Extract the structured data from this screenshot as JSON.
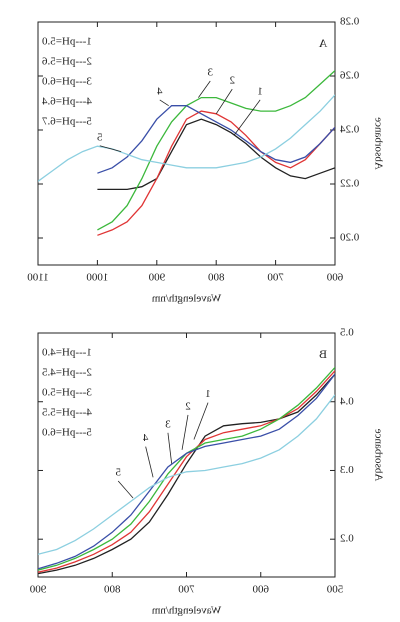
{
  "chart_data": [
    {
      "type": "line",
      "panel_label": "A",
      "x_label": "Wavelength/nm",
      "y_label": "Absorbance",
      "x": [
        600,
        625,
        650,
        675,
        700,
        725,
        750,
        775,
        800,
        825,
        850,
        875,
        900,
        925,
        950,
        975,
        1000,
        1025,
        1050,
        1075,
        1100
      ],
      "xlim": [
        600,
        1100
      ],
      "xticks": [
        600,
        700,
        800,
        900,
        1000,
        1100
      ],
      "ylim": [
        0.19,
        0.28
      ],
      "yticks": [
        {
          "value": 0.2,
          "label": "0.20"
        },
        0.22,
        0.24,
        0.26,
        0.28
      ],
      "legend": "upper right",
      "curve_labels": [
        "1",
        "2",
        "3",
        "4",
        "5"
      ],
      "series": [
        {
          "name": "1---pH=5.0",
          "color": "#222222",
          "values": [
            0.226,
            0.224,
            0.222,
            0.223,
            0.226,
            0.23,
            0.235,
            0.239,
            0.242,
            0.244,
            0.242,
            0.232,
            0.222,
            0.219,
            0.218,
            0.218,
            0.218,
            null,
            null,
            null,
            null
          ]
        },
        {
          "name": "2---pH=5.6",
          "color": "#e03535",
          "values": [
            0.241,
            0.235,
            0.229,
            0.226,
            0.228,
            0.232,
            0.238,
            0.243,
            0.246,
            0.247,
            0.244,
            0.234,
            0.222,
            0.212,
            0.206,
            0.203,
            0.201,
            null,
            null,
            null,
            null
          ]
        },
        {
          "name": "3---pH=6.0",
          "color": "#3cb83c",
          "values": [
            0.262,
            0.257,
            0.252,
            0.249,
            0.247,
            0.247,
            0.248,
            0.25,
            0.252,
            0.252,
            0.249,
            0.243,
            0.234,
            0.222,
            0.212,
            0.206,
            0.203,
            null,
            null,
            null,
            null
          ]
        },
        {
          "name": "4---pH=6.4",
          "color": "#3a4fa8",
          "values": [
            0.241,
            0.235,
            0.23,
            0.228,
            0.229,
            0.232,
            0.236,
            0.24,
            0.243,
            0.246,
            0.249,
            0.249,
            0.244,
            0.236,
            0.23,
            0.226,
            0.224,
            null,
            null,
            null,
            null
          ]
        },
        {
          "name": "5---pH=6.7",
          "color": "#8ccfe0",
          "values": [
            0.253,
            0.247,
            0.242,
            0.237,
            0.233,
            0.23,
            0.228,
            0.227,
            0.226,
            0.226,
            0.226,
            0.227,
            0.228,
            0.229,
            0.231,
            0.233,
            0.234,
            0.232,
            0.229,
            0.225,
            0.221
          ]
        }
      ]
    },
    {
      "type": "line",
      "panel_label": "B",
      "x_label": "Wavelength/nm",
      "y_label": "Absorbance",
      "x": [
        500,
        525,
        550,
        575,
        600,
        625,
        650,
        675,
        700,
        725,
        750,
        775,
        800,
        825,
        850,
        875,
        900
      ],
      "xlim": [
        500,
        900
      ],
      "xticks": [
        500,
        600,
        700,
        800,
        900
      ],
      "ylim": [
        0.145,
        0.5
      ],
      "yticks": [
        0.2,
        0.3,
        0.4,
        0.5
      ],
      "legend": "upper right",
      "curve_labels": [
        "1",
        "2",
        "3",
        "4",
        "5"
      ],
      "series": [
        {
          "name": "1---pH=4.0",
          "color": "#222222",
          "values": [
            0.44,
            0.41,
            0.385,
            0.375,
            0.37,
            0.368,
            0.365,
            0.35,
            0.31,
            0.265,
            0.225,
            0.2,
            0.185,
            0.172,
            0.162,
            0.155,
            0.15
          ]
        },
        {
          "name": "2---pH=4.5",
          "color": "#e03535",
          "values": [
            0.445,
            0.415,
            0.39,
            0.375,
            0.365,
            0.36,
            0.355,
            0.345,
            0.32,
            0.28,
            0.24,
            0.21,
            0.192,
            0.178,
            0.167,
            0.158,
            0.152
          ]
        },
        {
          "name": "3---pH=5.0",
          "color": "#3cb83c",
          "values": [
            0.45,
            0.42,
            0.395,
            0.375,
            0.36,
            0.35,
            0.345,
            0.34,
            0.325,
            0.295,
            0.255,
            0.222,
            0.2,
            0.185,
            0.172,
            0.162,
            0.155
          ]
        },
        {
          "name": "4---pH=5.5",
          "color": "#3a4fa8",
          "values": [
            0.44,
            0.405,
            0.38,
            0.36,
            0.35,
            0.345,
            0.34,
            0.335,
            0.325,
            0.305,
            0.27,
            0.235,
            0.21,
            0.19,
            0.175,
            0.165,
            0.157
          ]
        },
        {
          "name": "5---pH=6.0",
          "color": "#8ccfe0",
          "values": [
            0.41,
            0.375,
            0.35,
            0.33,
            0.318,
            0.31,
            0.305,
            0.3,
            0.298,
            0.29,
            0.275,
            0.255,
            0.235,
            0.215,
            0.198,
            0.185,
            0.178
          ]
        }
      ]
    }
  ]
}
